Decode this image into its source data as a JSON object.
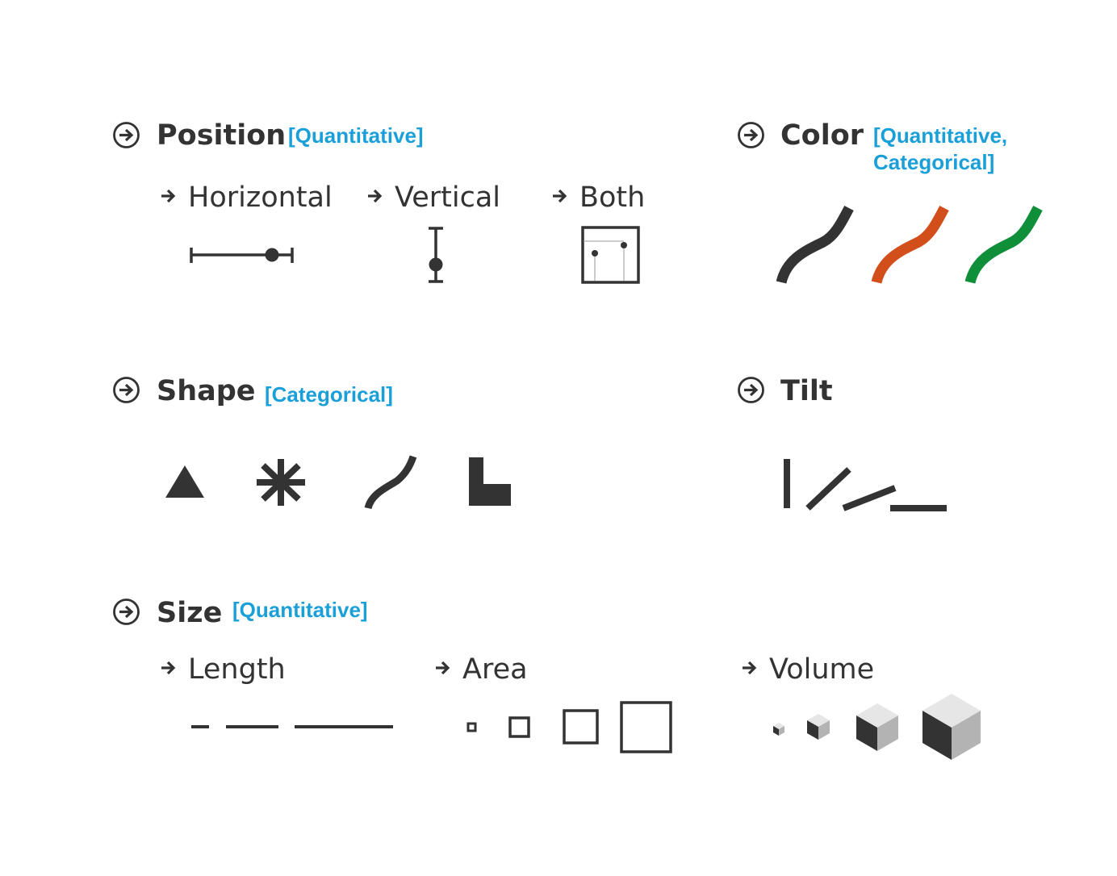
{
  "position": {
    "title": "Position",
    "tag": "[Quantitative]",
    "subs": [
      "Horizontal",
      "Vertical",
      "Both"
    ]
  },
  "color": {
    "title": "Color",
    "tag_line1": "[Quantitative,",
    "tag_line2": "Categorical]",
    "swatches": [
      "#333333",
      "#d24e1b",
      "#0f8f3a"
    ]
  },
  "shape": {
    "title": "Shape",
    "tag": "[Categorical]"
  },
  "tilt": {
    "title": "Tilt"
  },
  "size": {
    "title": "Size",
    "tag": "[Quantitative]",
    "subs": [
      "Length",
      "Area",
      "Volume"
    ]
  },
  "icons": {
    "section": "circled-arrow-icon",
    "sub": "arrow-right-icon"
  },
  "colors": {
    "text": "#333333",
    "accent": "#1a9fd9"
  }
}
